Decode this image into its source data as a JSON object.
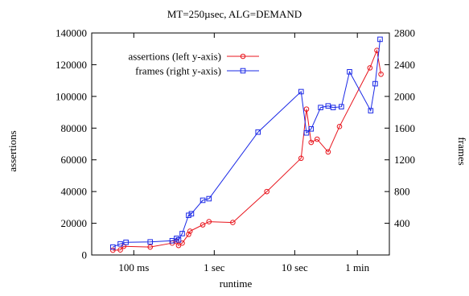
{
  "chart_data": {
    "type": "line",
    "title": "MT=250µsec, ALG=DEMAND",
    "xlabel": "runtime",
    "ylabel": "assertions",
    "y2label": "frames",
    "x_scale": "log",
    "x_unit": "seconds",
    "xlim": [
      0.03,
      150
    ],
    "ylim": [
      0,
      140000
    ],
    "y2lim": [
      0,
      2800
    ],
    "x_ticks": [
      {
        "value": 0.1,
        "label": "100 ms"
      },
      {
        "value": 1,
        "label": "1 sec"
      },
      {
        "value": 10,
        "label": "10 sec"
      },
      {
        "value": 60,
        "label": "1 min"
      }
    ],
    "y_ticks": [
      0,
      20000,
      40000,
      60000,
      80000,
      100000,
      120000,
      140000
    ],
    "y2_ticks": [
      400,
      800,
      1200,
      1600,
      2000,
      2400,
      2800
    ],
    "grid": false,
    "legend_position": "top-left",
    "series": [
      {
        "name": "assertions (left y-axis)",
        "axis": "left",
        "color": "#e8141c",
        "marker": "circle",
        "x": [
          0.055,
          0.068,
          0.075,
          0.16,
          0.3,
          0.34,
          0.36,
          0.4,
          0.48,
          0.5,
          0.72,
          0.86,
          1.7,
          4.5,
          12,
          14,
          16,
          19,
          26,
          36,
          86,
          105,
          118
        ],
        "y": [
          3000,
          3200,
          5500,
          5000,
          7500,
          8500,
          6000,
          7500,
          13000,
          15000,
          19000,
          21000,
          20500,
          40000,
          61000,
          92000,
          71000,
          73000,
          65000,
          81000,
          118000,
          129000,
          114000
        ]
      },
      {
        "name": "frames (right y-axis)",
        "axis": "right",
        "color": "#1a28e6",
        "marker": "square",
        "x": [
          0.055,
          0.068,
          0.08,
          0.16,
          0.3,
          0.34,
          0.36,
          0.4,
          0.48,
          0.52,
          0.72,
          0.86,
          3.5,
          12,
          14,
          16,
          21,
          26,
          30,
          38,
          48,
          88,
          100,
          115
        ],
        "y": [
          100,
          140,
          160,
          165,
          180,
          210,
          190,
          270,
          500,
          520,
          690,
          710,
          1550,
          2060,
          1540,
          1590,
          1860,
          1880,
          1860,
          1870,
          2310,
          1820,
          2160,
          2720
        ]
      }
    ]
  }
}
